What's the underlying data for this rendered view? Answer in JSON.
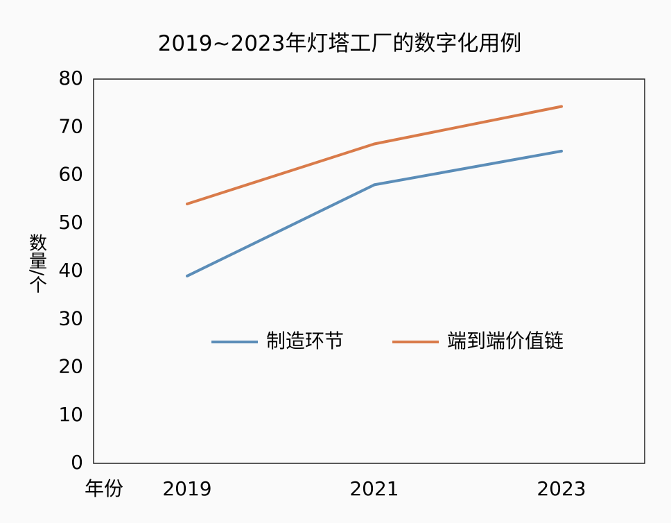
{
  "chart_data": {
    "type": "line",
    "title": "2019~2023年灯塔工厂的数字化用例",
    "xlabel": "年份",
    "ylabel": "数量/个",
    "categories": [
      "2019",
      "2021",
      "2023"
    ],
    "ylim": [
      0,
      80
    ],
    "yticks": [
      0,
      10,
      20,
      30,
      40,
      50,
      60,
      70,
      80
    ],
    "grid": false,
    "legend_position": "center",
    "series": [
      {
        "name": "制造环节",
        "values": [
          39,
          58,
          65
        ],
        "color": "#5b8db8"
      },
      {
        "name": "端到端价值链",
        "values": [
          54,
          66.5,
          74.3
        ],
        "color": "#d97b4a"
      }
    ]
  }
}
